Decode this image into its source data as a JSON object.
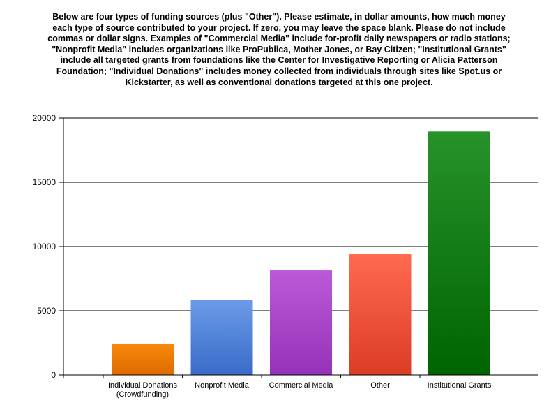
{
  "title": "Below are four types of funding sources (plus \"Other\"). Please estimate, in dollar amounts, how much money each type of source contributed to your project. If zero, you may leave the space blank. Please do not include commas or dollar signs.  Examples of \"Commercial Media\" include for-profit daily newspapers or radio stations; \"Nonprofit Media\" includes organizations like ProPublica, Mother Jones, or Bay Citizen; \"Institutional Grants\" include all targeted grants from foundations like the Center for Investigative Reporting or Alicia Patterson Foundation; \"Individual Donations\" includes money collected from individuals through sites like Spot.us  or Kickstarter, as well as conventional donations targeted at this one project.",
  "chart_data": {
    "type": "bar",
    "categories": [
      [
        "Individual Donations",
        "(Crowdfunding)"
      ],
      [
        "Nonprofit Media"
      ],
      [
        "Commercial Media"
      ],
      [
        "Other"
      ],
      [
        "Institutional Grants"
      ]
    ],
    "values": [
      2450,
      5850,
      8150,
      9400,
      18950
    ],
    "colors": [
      [
        "#f7890b",
        "#e06a00"
      ],
      [
        "#6b9be8",
        "#3a6bc8"
      ],
      [
        "#bb5ad8",
        "#9532b9"
      ],
      [
        "#ff6a4e",
        "#db3d24"
      ],
      [
        "#27922a",
        "#006400"
      ]
    ],
    "ylim": [
      0,
      20000
    ],
    "yticks": [
      "0",
      "5000",
      "10000",
      "15000",
      "20000"
    ],
    "grid": true
  }
}
